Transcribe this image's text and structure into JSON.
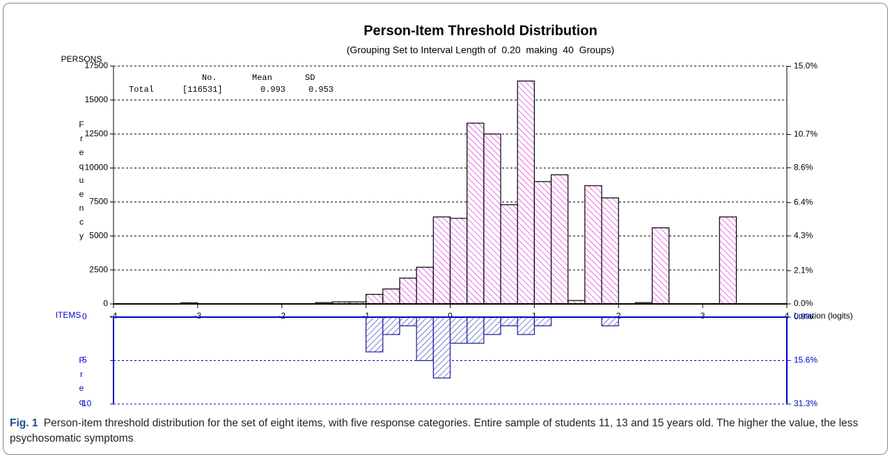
{
  "chart_data": [
    {
      "type": "histogram",
      "title": "Person-Item Threshold Distribution",
      "subtitle": "(Grouping Set to Interval Length of  0.20  making  40  Groups)",
      "corner_label": "PERSONS",
      "y_label": "Frequency",
      "x_label": "Location (logits)",
      "bins": [
        -4,
        -3.8,
        -3.6,
        -3.4,
        -3.2,
        -3,
        -2.8,
        -2.6,
        -2.4,
        -2.2,
        -2,
        -1.8,
        -1.6,
        -1.4,
        -1.2,
        -1,
        -0.8,
        -0.6,
        -0.4,
        -0.2,
        0,
        0.2,
        0.4,
        0.6,
        0.8,
        1,
        1.2,
        1.4,
        1.6,
        1.8,
        2,
        2.2,
        2.4,
        2.6,
        2.8,
        3,
        3.2,
        3.4,
        3.6,
        3.8,
        4
      ],
      "values": [
        0,
        0,
        0,
        0,
        80,
        0,
        0,
        0,
        0,
        0,
        0,
        0,
        100,
        150,
        150,
        700,
        1100,
        1900,
        2700,
        6400,
        6300,
        13300,
        12500,
        7300,
        16400,
        9000,
        9500,
        250,
        8700,
        7800,
        0,
        100,
        5600,
        0,
        0,
        0,
        6400,
        0,
        0,
        0
      ],
      "color": "#e020e0",
      "edgecolor": "#000000",
      "axis_color": "#000000",
      "hatch": "\\",
      "xlim": [
        -4,
        4
      ],
      "xticks": [
        -4,
        -3,
        -2,
        -1,
        0,
        1,
        2,
        3,
        4
      ],
      "ylim": [
        0,
        17500
      ],
      "yticks": [
        0,
        2500,
        5000,
        7500,
        10000,
        12500,
        15000,
        17500
      ],
      "y2lim": [
        0,
        15.02
      ],
      "y2ticks": [
        {
          "value": 0,
          "label": "0.0%"
        },
        {
          "value": 2.1,
          "label": "2.1%"
        },
        {
          "value": 4.3,
          "label": "4.3%"
        },
        {
          "value": 6.4,
          "label": "6.4%"
        },
        {
          "value": 8.6,
          "label": "8.6%"
        },
        {
          "value": 10.7,
          "label": "10.7%"
        },
        {
          "value": 15.0,
          "label": "15.0%"
        }
      ],
      "grid": true,
      "stats": {
        "headers": [
          "No.",
          "Mean",
          "SD"
        ],
        "row": [
          "Total",
          "[116531]",
          "0.993",
          "0.953"
        ]
      }
    },
    {
      "type": "histogram",
      "corner_label": "ITEMS",
      "y_label": "Freq",
      "bins": [
        -4,
        -3.8,
        -3.6,
        -3.4,
        -3.2,
        -3,
        -2.8,
        -2.6,
        -2.4,
        -2.2,
        -2,
        -1.8,
        -1.6,
        -1.4,
        -1.2,
        -1,
        -0.8,
        -0.6,
        -0.4,
        -0.2,
        0,
        0.2,
        0.4,
        0.6,
        0.8,
        1,
        1.2,
        1.4,
        1.6,
        1.8,
        2,
        2.2,
        2.4,
        2.6,
        2.8,
        3,
        3.2,
        3.4,
        3.6,
        3.8,
        4
      ],
      "values": [
        0,
        0,
        0,
        0,
        0,
        0,
        0,
        0,
        0,
        0,
        0,
        0,
        0,
        0,
        0,
        4,
        2,
        1,
        5,
        7,
        3,
        3,
        2,
        1,
        2,
        1,
        0,
        0,
        0,
        1,
        0,
        0,
        0,
        0,
        0,
        0,
        0,
        0,
        0,
        0
      ],
      "color": "#2a3fb8",
      "edgecolor": "#1a1a9a",
      "axis_color": "#0000cc",
      "hatch": "/",
      "xlim": [
        -4,
        4
      ],
      "ylim": [
        0,
        10
      ],
      "yticks": [
        0,
        5,
        10
      ],
      "inverted": true,
      "y2lim": [
        0,
        31.3
      ],
      "y2ticks": [
        {
          "value": 0,
          "label": "0.0%"
        },
        {
          "value": 15.6,
          "label": "15.6%"
        },
        {
          "value": 31.3,
          "label": "31.3%"
        }
      ],
      "grid": true
    }
  ],
  "caption": {
    "label": "Fig. 1",
    "text": "Person-item threshold distribution for the set of eight items, with five response categories. Entire sample of students 11, 13 and 15 years old. The higher the value, the less psychosomatic symptoms"
  }
}
